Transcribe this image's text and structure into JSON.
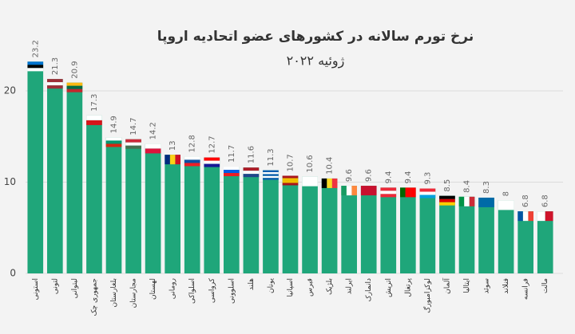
{
  "chart_data": {
    "type": "bar",
    "title": "نرخ تورم سالانه در کشورهای عضو اتحادیه اروپا",
    "subtitle": "ژوئیه ۲۰۲۲",
    "categories": [
      "استونی",
      "لتونی",
      "لیتوانی",
      "جمهوری چک",
      "بلغارستان",
      "مجارستان",
      "لهستان",
      "رومانی",
      "اسلواکی",
      "کرواسی",
      "اسلوونی",
      "هلند",
      "یونان",
      "اسپانیا",
      "قبرس",
      "بلژیک",
      "ایرلند",
      "دانمارک",
      "اتریش",
      "پرتغال",
      "لوکزامبورگ",
      "آلمان",
      "ایتالیا",
      "سوئد",
      "فنلاند",
      "فرانسه",
      "مالت"
    ],
    "values": [
      23.2,
      21.3,
      20.9,
      17.3,
      14.9,
      14.7,
      14.2,
      13,
      12.8,
      12.7,
      11.7,
      11.6,
      11.3,
      10.7,
      10.6,
      10.4,
      9.6,
      9.6,
      9.4,
      9.4,
      9.3,
      8.5,
      8.4,
      8.3,
      8,
      6.8,
      6.8
    ],
    "color": "#1fa67a",
    "ylim": [
      0,
      26
    ],
    "yticks": [
      0,
      10,
      20
    ],
    "grid": true
  }
}
